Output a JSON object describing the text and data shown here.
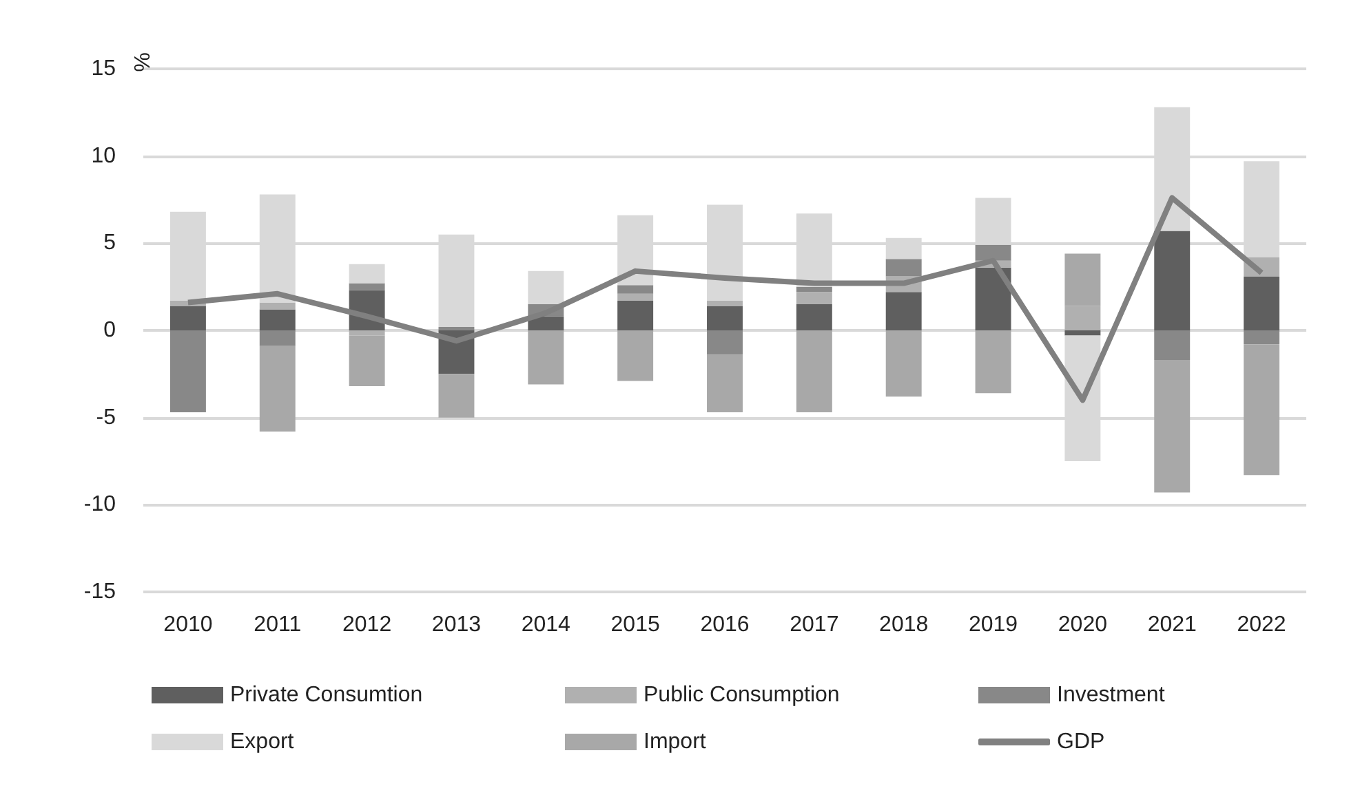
{
  "chart_data": {
    "type": "bar",
    "stacked": true,
    "ylabel": "%",
    "categories": [
      "2010",
      "2011",
      "2012",
      "2013",
      "2014",
      "2015",
      "2016",
      "2017",
      "2018",
      "2019",
      "2020",
      "2021",
      "2022"
    ],
    "series": [
      {
        "name": "Private Consumtion",
        "color": "#5f5f5f",
        "values": [
          1.4,
          1.2,
          2.3,
          -2.5,
          0.8,
          1.7,
          1.4,
          1.5,
          2.2,
          3.6,
          -0.3,
          5.7,
          3.1
        ]
      },
      {
        "name": "Public Consumption",
        "color": "#b0b0b0",
        "values": [
          0.3,
          0.4,
          -0.3,
          null,
          null,
          0.4,
          0.3,
          0.7,
          0.9,
          0.4,
          1.4,
          0,
          1.1
        ]
      },
      {
        "name": "Investment",
        "color": "#888888",
        "values": [
          -4.7,
          -0.9,
          0.4,
          0.2,
          0.7,
          0.5,
          -1.4,
          0.3,
          1.0,
          0.9,
          0,
          -1.7,
          -0.8
        ]
      },
      {
        "name": "Export",
        "color": "#d9d9d9",
        "values": [
          5.1,
          6.2,
          1.1,
          5.3,
          1.9,
          4.0,
          5.5,
          4.2,
          1.2,
          2.7,
          -7.2,
          7.1,
          5.5
        ]
      },
      {
        "name": "Import",
        "color": "#a8a8a8",
        "values": [
          0,
          -4.9,
          -2.9,
          -2.5,
          -3.1,
          -2.9,
          -3.3,
          -4.7,
          -3.8,
          -3.6,
          3.0,
          -7.6,
          -7.5
        ]
      },
      {
        "name": "GDP",
        "type": "line",
        "color": "#808080",
        "values": [
          1.6,
          2.1,
          0.8,
          -0.6,
          1.0,
          3.4,
          3.0,
          2.7,
          2.7,
          4.0,
          -4.0,
          7.6,
          3.3
        ]
      }
    ],
    "ylim": [
      -15,
      15
    ],
    "yticks": [
      -15,
      -10,
      -5,
      0,
      5,
      10,
      15
    ],
    "grid": "y",
    "legend": "bottom",
    "marker": "none"
  }
}
